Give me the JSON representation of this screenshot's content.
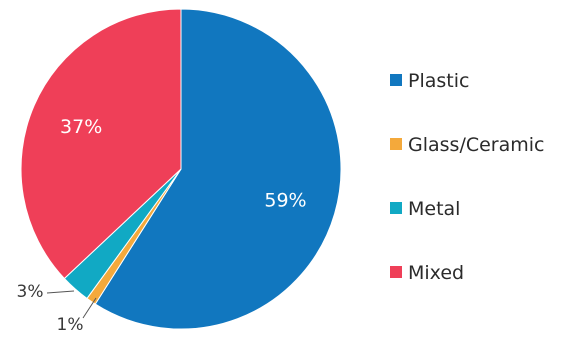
{
  "chart_data": {
    "type": "pie",
    "title": "",
    "start_angle_deg": 0,
    "direction": "clockwise",
    "legend_position": "right",
    "slices": [
      {
        "label": "Plastic",
        "value": 59,
        "display": "59%",
        "color": "#1177BF",
        "label_placement": "inside"
      },
      {
        "label": "Glass/Ceramic",
        "value": 1,
        "display": "1%",
        "color": "#F4A93B",
        "label_placement": "outside"
      },
      {
        "label": "Metal",
        "value": 3,
        "display": "3%",
        "color": "#11A9C4",
        "label_placement": "outside"
      },
      {
        "label": "Mixed",
        "value": 37,
        "display": "37%",
        "color": "#EF3F58",
        "label_placement": "inside"
      }
    ]
  }
}
